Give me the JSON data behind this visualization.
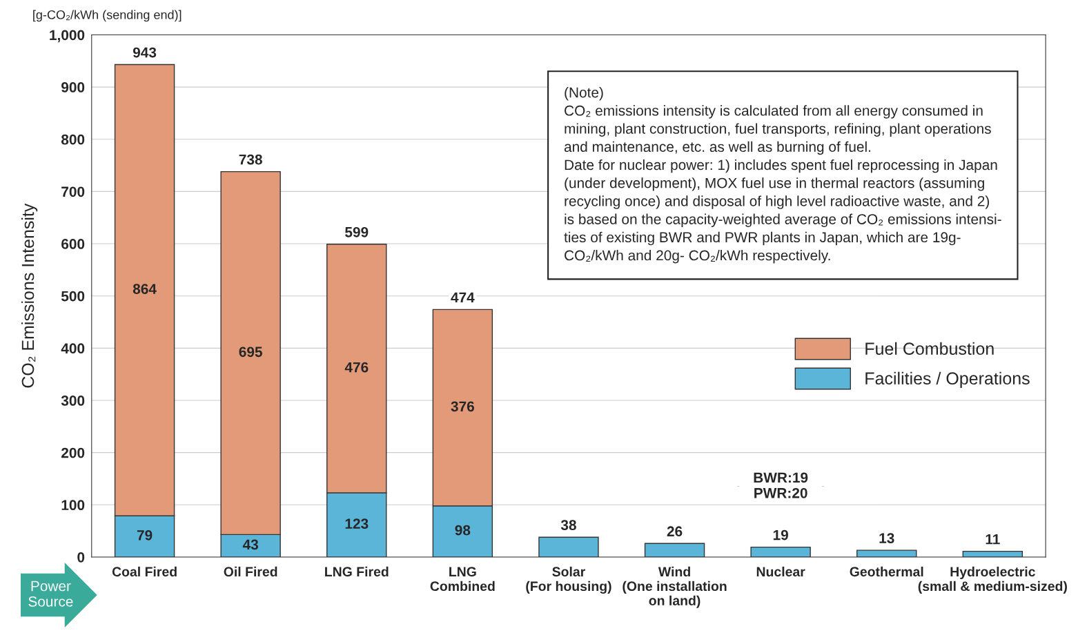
{
  "chart_data": {
    "type": "bar",
    "stacked": true,
    "title": "[g-CO₂/kWh (sending end)]",
    "ylabel": "CO₂ Emissions Intensity",
    "categories": [
      "Coal Fired",
      "Oil Fired",
      "LNG Fired",
      "LNG\nCombined",
      "Solar\n(For housing)",
      "Wind\n(One installation\non land)",
      "Nuclear",
      "Geothermal",
      "Hydroelectric\n(small & medium-sized)"
    ],
    "series": [
      {
        "name": "Facilities / Operations",
        "color": "#5bb5d9",
        "values": [
          79,
          43,
          123,
          98,
          38,
          26,
          19,
          13,
          11
        ],
        "value_labels": [
          "79",
          "43",
          "123",
          "98",
          "38",
          "26",
          "19",
          "13",
          "11"
        ]
      },
      {
        "name": "Fuel Combustion",
        "color": "#e39a78",
        "values": [
          864,
          695,
          476,
          376,
          null,
          null,
          null,
          null,
          null
        ],
        "value_labels": [
          "864",
          "695",
          "476",
          "376",
          null,
          null,
          null,
          null,
          null
        ]
      }
    ],
    "totals": [
      "943",
      "738",
      "599",
      "474",
      null,
      null,
      null,
      null,
      null
    ],
    "ylim": [
      0,
      1000
    ],
    "yticks": [
      0,
      100,
      200,
      300,
      400,
      500,
      600,
      700,
      800,
      900,
      {
        "value": 1000,
        "label": "1,000"
      }
    ],
    "grid": "y",
    "legend": "right",
    "annotations": [
      "(Note)\nCO₂ emissions intensity is calculated from all energy consumed in\nmining, plant construction, fuel transports, refining, plant operations\nand maintenance, etc. as well as burning of fuel.\nDate for nuclear power: 1) includes spent fuel reprocessing in Japan\n(under development), MOX fuel use in thermal reactors (assuming\nrecycling once) and disposal of high level radioactive waste, and 2)\nis based on the capacity-weighted average of CO₂ emissions intensi-\nties of existing BWR and PWR plants in Japan, which are 19g-\nCO₂/kWh and 20g- CO₂/kWh respectively.",
      "BWR:19\nPWR:20",
      "Power\nSource"
    ]
  }
}
